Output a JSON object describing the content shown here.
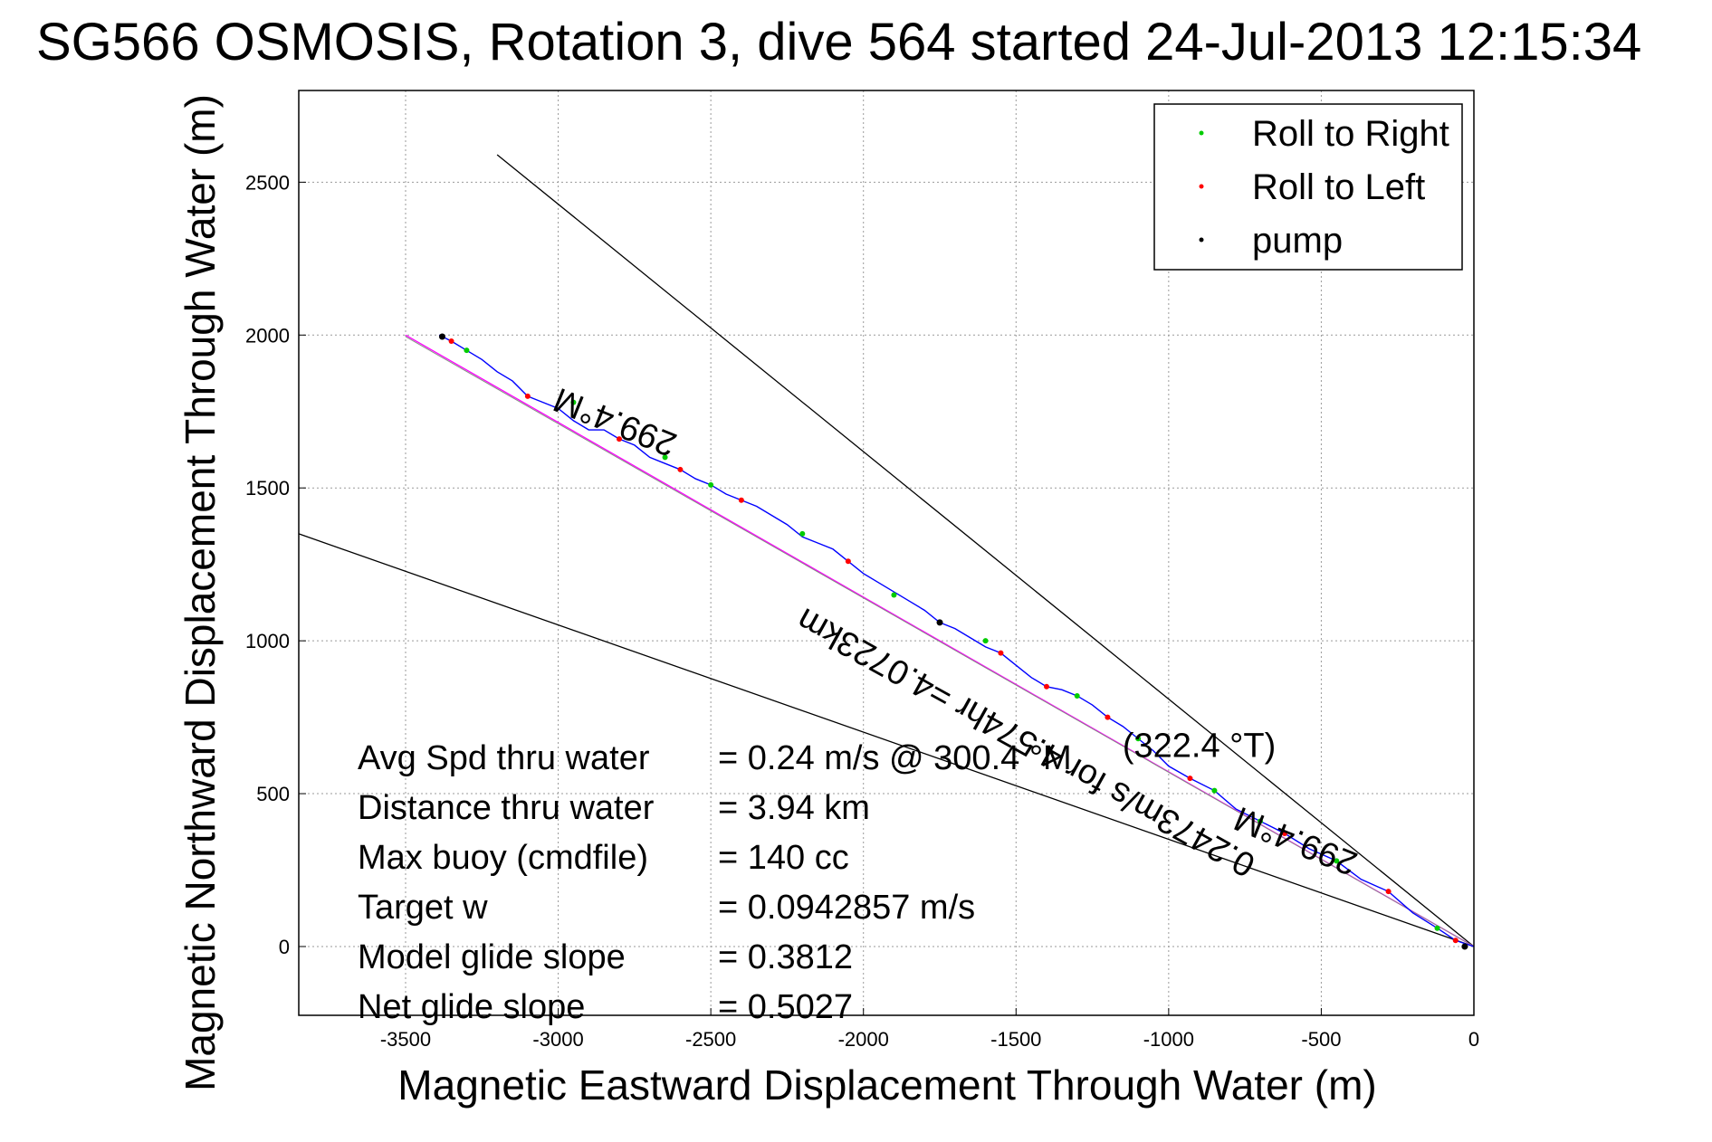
{
  "chart_data": {
    "type": "line",
    "title": "SG566 OSMOSIS, Rotation 3, dive 564 started 24-Jul-2013 12:15:34",
    "xlabel": "Magnetic Eastward Displacement Through Water (m)",
    "ylabel": "Magnetic Northward Displacement Through Water (m)",
    "xlim": [
      -3850,
      0
    ],
    "ylim": [
      -225,
      2800
    ],
    "grid": true,
    "x_ticks": [
      -3500,
      -3000,
      -2500,
      -2000,
      -1500,
      -1000,
      -500,
      0
    ],
    "x_tick_labels": [
      "-3500",
      "-3000",
      "-2500",
      "-2000",
      "-1500",
      "-1000",
      "-500",
      "0"
    ],
    "y_ticks": [
      0,
      500,
      1000,
      1500,
      2000,
      2500
    ],
    "y_tick_labels": [
      "0",
      "500",
      "1000",
      "1500",
      "2000",
      "2500"
    ],
    "legend": {
      "placement": "top-right",
      "entries": [
        {
          "label": "Roll to Right",
          "color": "#00cc00"
        },
        {
          "label": "Roll to Left",
          "color": "#ff0000"
        },
        {
          "label": "pump",
          "color": "#000000"
        }
      ]
    },
    "track_color": "#0000ff",
    "track": {
      "x": [
        0,
        -60,
        -120,
        -200,
        -280,
        -370,
        -450,
        -540,
        -620,
        -700,
        -780,
        -850,
        -930,
        -1000,
        -1050,
        -1100,
        -1150,
        -1200,
        -1250,
        -1300,
        -1350,
        -1400,
        -1450,
        -1500,
        -1550,
        -1600,
        -1650,
        -1700,
        -1750,
        -1800,
        -1850,
        -1900,
        -1950,
        -2000,
        -2050,
        -2100,
        -2150,
        -2200,
        -2250,
        -2300,
        -2350,
        -2400,
        -2450,
        -2500,
        -2550,
        -2600,
        -2650,
        -2700,
        -2750,
        -2800,
        -2850,
        -2900,
        -2950,
        -3000,
        -3050,
        -3100,
        -3150,
        -3200,
        -3250,
        -3300,
        -3350,
        -3390
      ],
      "y": [
        0,
        20,
        60,
        110,
        180,
        220,
        280,
        320,
        370,
        410,
        450,
        510,
        550,
        590,
        640,
        680,
        720,
        750,
        790,
        820,
        840,
        850,
        880,
        920,
        960,
        980,
        1010,
        1040,
        1060,
        1100,
        1130,
        1160,
        1190,
        1220,
        1260,
        1300,
        1320,
        1340,
        1380,
        1410,
        1440,
        1460,
        1480,
        1510,
        1530,
        1560,
        1580,
        1600,
        1640,
        1660,
        1690,
        1690,
        1720,
        1760,
        1780,
        1800,
        1850,
        1880,
        1920,
        1950,
        1980,
        2000
      ]
    },
    "roll_right_points": {
      "x": [
        -120,
        -450,
        -700,
        -850,
        -1100,
        -1300,
        -1600,
        -1900,
        -2200,
        -2500,
        -2650,
        -2950,
        -3300
      ],
      "y": [
        60,
        280,
        410,
        510,
        680,
        820,
        1000,
        1150,
        1350,
        1510,
        1600,
        1780,
        1950
      ]
    },
    "roll_left_points": {
      "x": [
        -60,
        -280,
        -620,
        -930,
        -1200,
        -1400,
        -1550,
        -1750,
        -2050,
        -2400,
        -2600,
        -2800,
        -3100,
        -3350
      ],
      "y": [
        20,
        180,
        370,
        550,
        750,
        850,
        960,
        1060,
        1260,
        1460,
        1560,
        1660,
        1800,
        1980
      ]
    },
    "pump_points": {
      "x": [
        -30,
        -1750,
        -3380
      ],
      "y": [
        0,
        1060,
        1995
      ]
    },
    "reference_lines": [
      {
        "name": "upper-bound",
        "color": "#000000",
        "x": [
          0,
          -3200
        ],
        "y": [
          0,
          2590
        ]
      },
      {
        "name": "lower-bound",
        "color": "#000000",
        "x": [
          0,
          -3850
        ],
        "y": [
          0,
          1350
        ]
      },
      {
        "name": "heading-line",
        "color": "#ff00ff",
        "x": [
          0,
          -3500
        ],
        "y": [
          0,
          2000
        ]
      },
      {
        "name": "model-line",
        "color": "#888888",
        "x": [
          0,
          -3500
        ],
        "y": [
          0,
          1995
        ]
      }
    ],
    "annotations": [
      {
        "text": "299.4°M",
        "x": -2800,
        "y": 1750,
        "rotation_deg": 22
      },
      {
        "text": "299.4°M",
        "x": -570,
        "y": 380,
        "rotation_deg": 22
      },
      {
        "text": "0.2473m/s for 4.574hr =4.0723km",
        "x": -1450,
        "y": 700,
        "rotation_deg": 29
      },
      {
        "text": "(322.4 °T)",
        "x": -900,
        "y": 620,
        "rotation_deg": 0
      }
    ],
    "stats": [
      {
        "label": "Avg Spd thru water",
        "value": "=  0.24 m/s @ 300.4 °M"
      },
      {
        "label": "Distance thru water",
        "value": "=  3.94 km"
      },
      {
        "label": "Max buoy (cmdfile)",
        "value": "= 140 cc"
      },
      {
        "label": "Target w",
        "value": "= 0.0942857 m/s"
      },
      {
        "label": "Model glide slope",
        "value": "= 0.3812"
      },
      {
        "label": "Net glide slope",
        "value": "= 0.5027"
      }
    ]
  }
}
